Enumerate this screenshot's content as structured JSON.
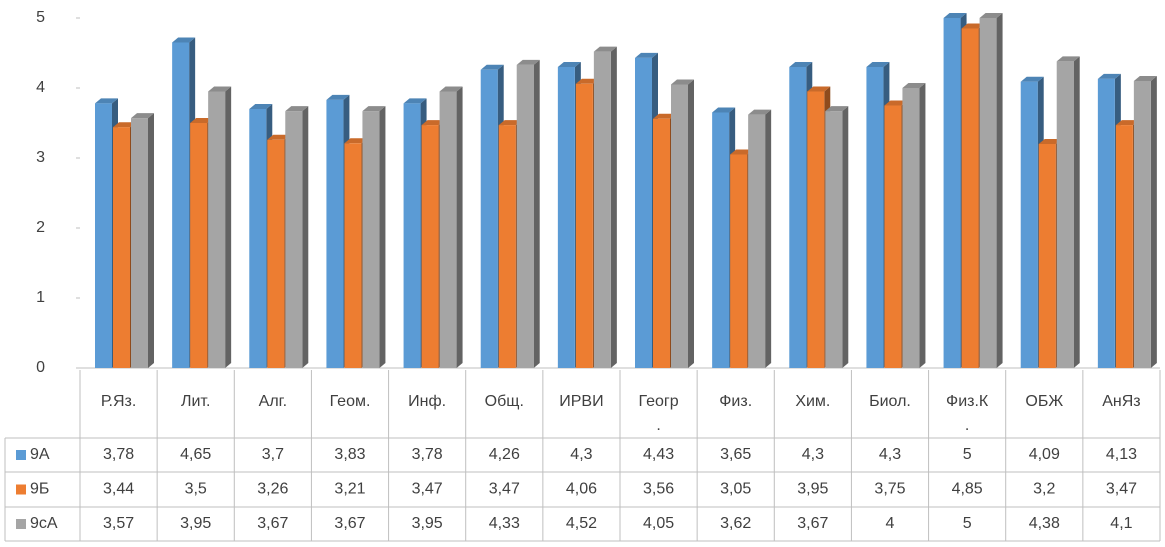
{
  "chart_data": {
    "type": "bar",
    "categories": [
      "Р.Яз.",
      "Лит.",
      "Алг.",
      "Геом.",
      "Инф.",
      "Общ.",
      "ИРВИ",
      "Геогр.",
      "Физ.",
      "Хим.",
      "Биол.",
      "Физ.К.",
      "ОБЖ",
      "АнЯз"
    ],
    "series": [
      {
        "name": "9А",
        "color": "#5b9bd5",
        "values": [
          3.78,
          4.65,
          3.7,
          3.83,
          3.78,
          4.26,
          4.3,
          4.43,
          3.65,
          4.3,
          4.3,
          5,
          4.09,
          4.13
        ],
        "value_labels": [
          "3,78",
          "4,65",
          "3,7",
          "3,83",
          "3,78",
          "4,26",
          "4,3",
          "4,43",
          "3,65",
          "4,3",
          "4,3",
          "5",
          "4,09",
          "4,13"
        ]
      },
      {
        "name": "9Б",
        "color": "#ed7d31",
        "values": [
          3.44,
          3.5,
          3.26,
          3.21,
          3.47,
          3.47,
          4.06,
          3.56,
          3.05,
          3.95,
          3.75,
          4.85,
          3.2,
          3.47
        ],
        "value_labels": [
          "3,44",
          "3,5",
          "3,26",
          "3,21",
          "3,47",
          "3,47",
          "4,06",
          "3,56",
          "3,05",
          "3,95",
          "3,75",
          "4,85",
          "3,2",
          "3,47"
        ]
      },
      {
        "name": "9сА",
        "color": "#a5a5a5",
        "values": [
          3.57,
          3.95,
          3.67,
          3.67,
          3.95,
          4.33,
          4.52,
          4.05,
          3.62,
          3.67,
          4,
          5,
          4.38,
          4.1
        ],
        "value_labels": [
          "3,57",
          "3,95",
          "3,67",
          "3,67",
          "3,95",
          "4,33",
          "4,52",
          "4,05",
          "3,62",
          "3,67",
          "4",
          "5",
          "4,38",
          "4,1"
        ]
      }
    ],
    "ylim": [
      0,
      5
    ],
    "yticks": [
      0,
      1,
      2,
      3,
      4,
      5
    ],
    "grid": false
  }
}
